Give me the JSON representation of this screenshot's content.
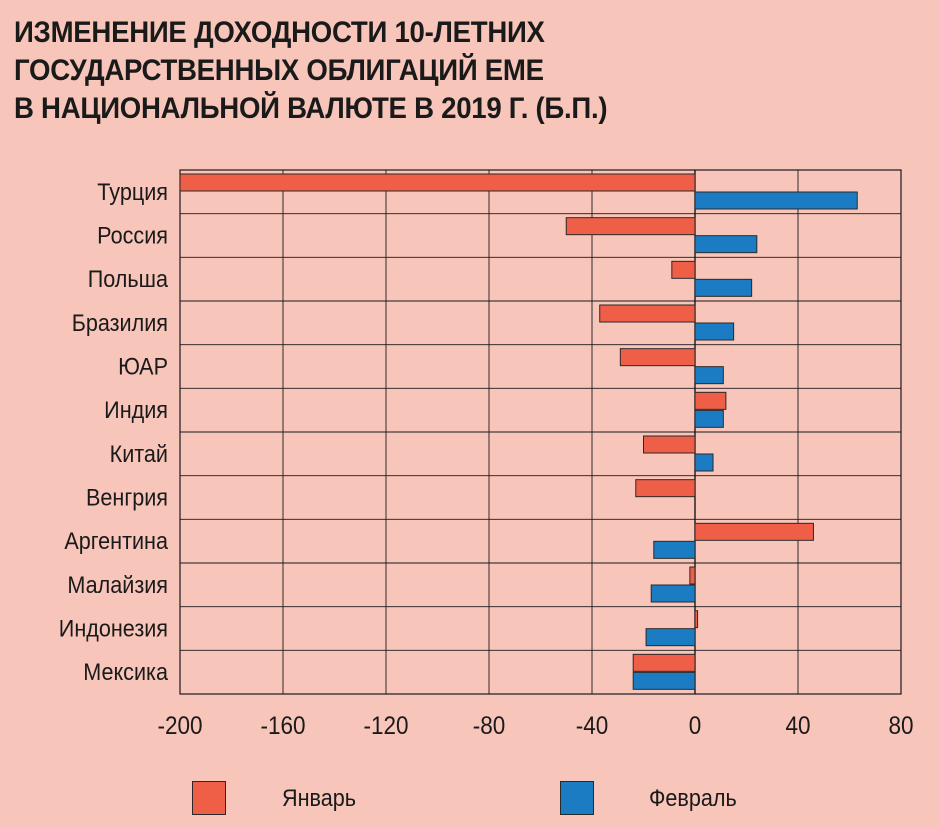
{
  "title_lines": [
    "ИЗМЕНЕНИЕ ДОХОДНОСТИ 10-ЛЕТНИХ",
    "ГОСУДАРСТВЕННЫХ ОБЛИГАЦИЙ ЕМЕ",
    "В НАЦИОНАЛЬНОЙ ВАЛЮТЕ В 2019 Г. (Б.П.)"
  ],
  "colors": {
    "background": "#f7c5b9",
    "january": "#ef5f48",
    "february": "#1c7cc3",
    "grid": "#1a1a1a"
  },
  "legend": [
    {
      "label": "Январь",
      "color": "#ef5f48"
    },
    {
      "label": "Февраль",
      "color": "#1c7cc3"
    }
  ],
  "chart_data": {
    "type": "bar",
    "orientation": "horizontal",
    "categories": [
      "Турция",
      "Россия",
      "Польша",
      "Бразилия",
      "ЮАР",
      "Индия",
      "Китай",
      "Венгрия",
      "Аргентина",
      "Малайзия",
      "Индонезия",
      "Мексика"
    ],
    "series": [
      {
        "name": "Январь",
        "values": [
          -200,
          -50,
          -9,
          -37,
          -29,
          12,
          -20,
          -23,
          46,
          -2,
          1,
          -24
        ]
      },
      {
        "name": "Февраль",
        "values": [
          63,
          24,
          22,
          15,
          11,
          11,
          7,
          0,
          -16,
          -17,
          -19,
          -24
        ]
      }
    ],
    "xlim": [
      -200,
      80
    ],
    "xticks": [
      "-200",
      "-160",
      "-120",
      "-80",
      "-40",
      "0",
      "40",
      "80"
    ],
    "grid": "vertical",
    "legend_position": "bottom"
  }
}
